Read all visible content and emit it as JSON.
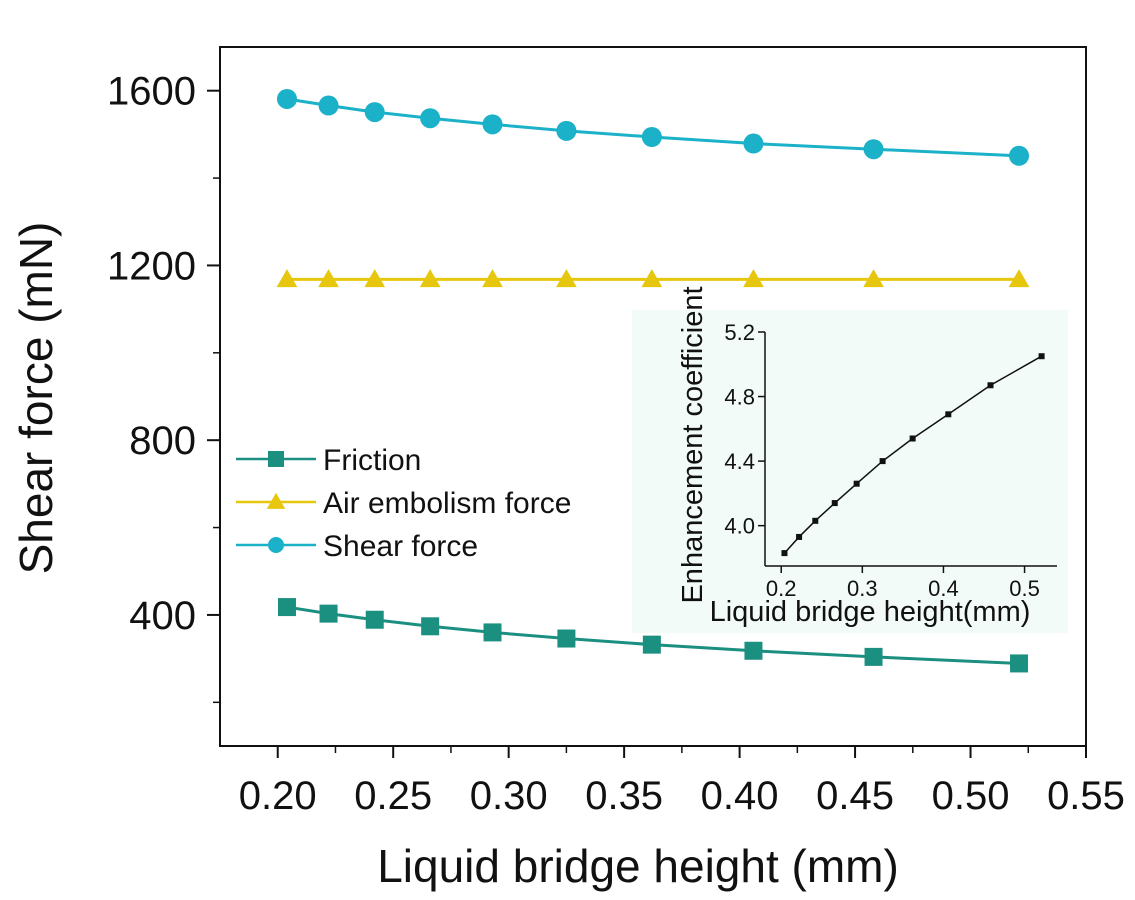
{
  "chart_data": [
    {
      "type": "line",
      "xlabel": "Liquid bridge height (mm)",
      "ylabel": "Shear force (mN)",
      "xlim": [
        0.175,
        0.55
      ],
      "ylim": [
        100,
        1700
      ],
      "x_ticks": [
        "0.20",
        "0.25",
        "0.30",
        "0.35",
        "0.40",
        "0.45",
        "0.50",
        "0.55"
      ],
      "y_ticks": [
        "400",
        "800",
        "1200",
        "1600"
      ],
      "grid": false,
      "legend_position": "center-left",
      "x": [
        0.204,
        0.222,
        0.242,
        0.266,
        0.293,
        0.325,
        0.362,
        0.406,
        0.458,
        0.521
      ],
      "series": [
        {
          "name": "Friction",
          "marker": "square",
          "color": "#1b8f80",
          "values": [
            418,
            403,
            389,
            374,
            360,
            346,
            332,
            318,
            304,
            289
          ]
        },
        {
          "name": "Air embolism force",
          "marker": "triangle",
          "color": "#e6c70e",
          "values": [
            1168,
            1168,
            1168,
            1168,
            1168,
            1168,
            1168,
            1168,
            1168,
            1168
          ]
        },
        {
          "name": "Shear force",
          "marker": "circle",
          "color": "#1bb1c8",
          "values": [
            1581,
            1566,
            1551,
            1537,
            1523,
            1508,
            1494,
            1479,
            1466,
            1451
          ]
        }
      ]
    },
    {
      "type": "line",
      "position": "inset-right",
      "background_color": "#f2fbf8",
      "xlabel": "Liquid bridge height(mm)",
      "ylabel": "Enhancement coefficient",
      "xlim": [
        0.18,
        0.54
      ],
      "ylim": [
        3.75,
        5.2
      ],
      "x_ticks": [
        "0.2",
        "0.3",
        "0.4",
        "0.5"
      ],
      "y_ticks": [
        "4.0",
        "4.4",
        "4.8",
        "5.2"
      ],
      "grid": false,
      "series": [
        {
          "name": "",
          "marker": "square",
          "color": "#111111",
          "x": [
            0.204,
            0.222,
            0.242,
            0.266,
            0.293,
            0.325,
            0.362,
            0.406,
            0.458,
            0.521
          ],
          "values": [
            3.83,
            3.93,
            4.03,
            4.14,
            4.26,
            4.4,
            4.54,
            4.69,
            4.87,
            5.05
          ]
        }
      ]
    }
  ]
}
